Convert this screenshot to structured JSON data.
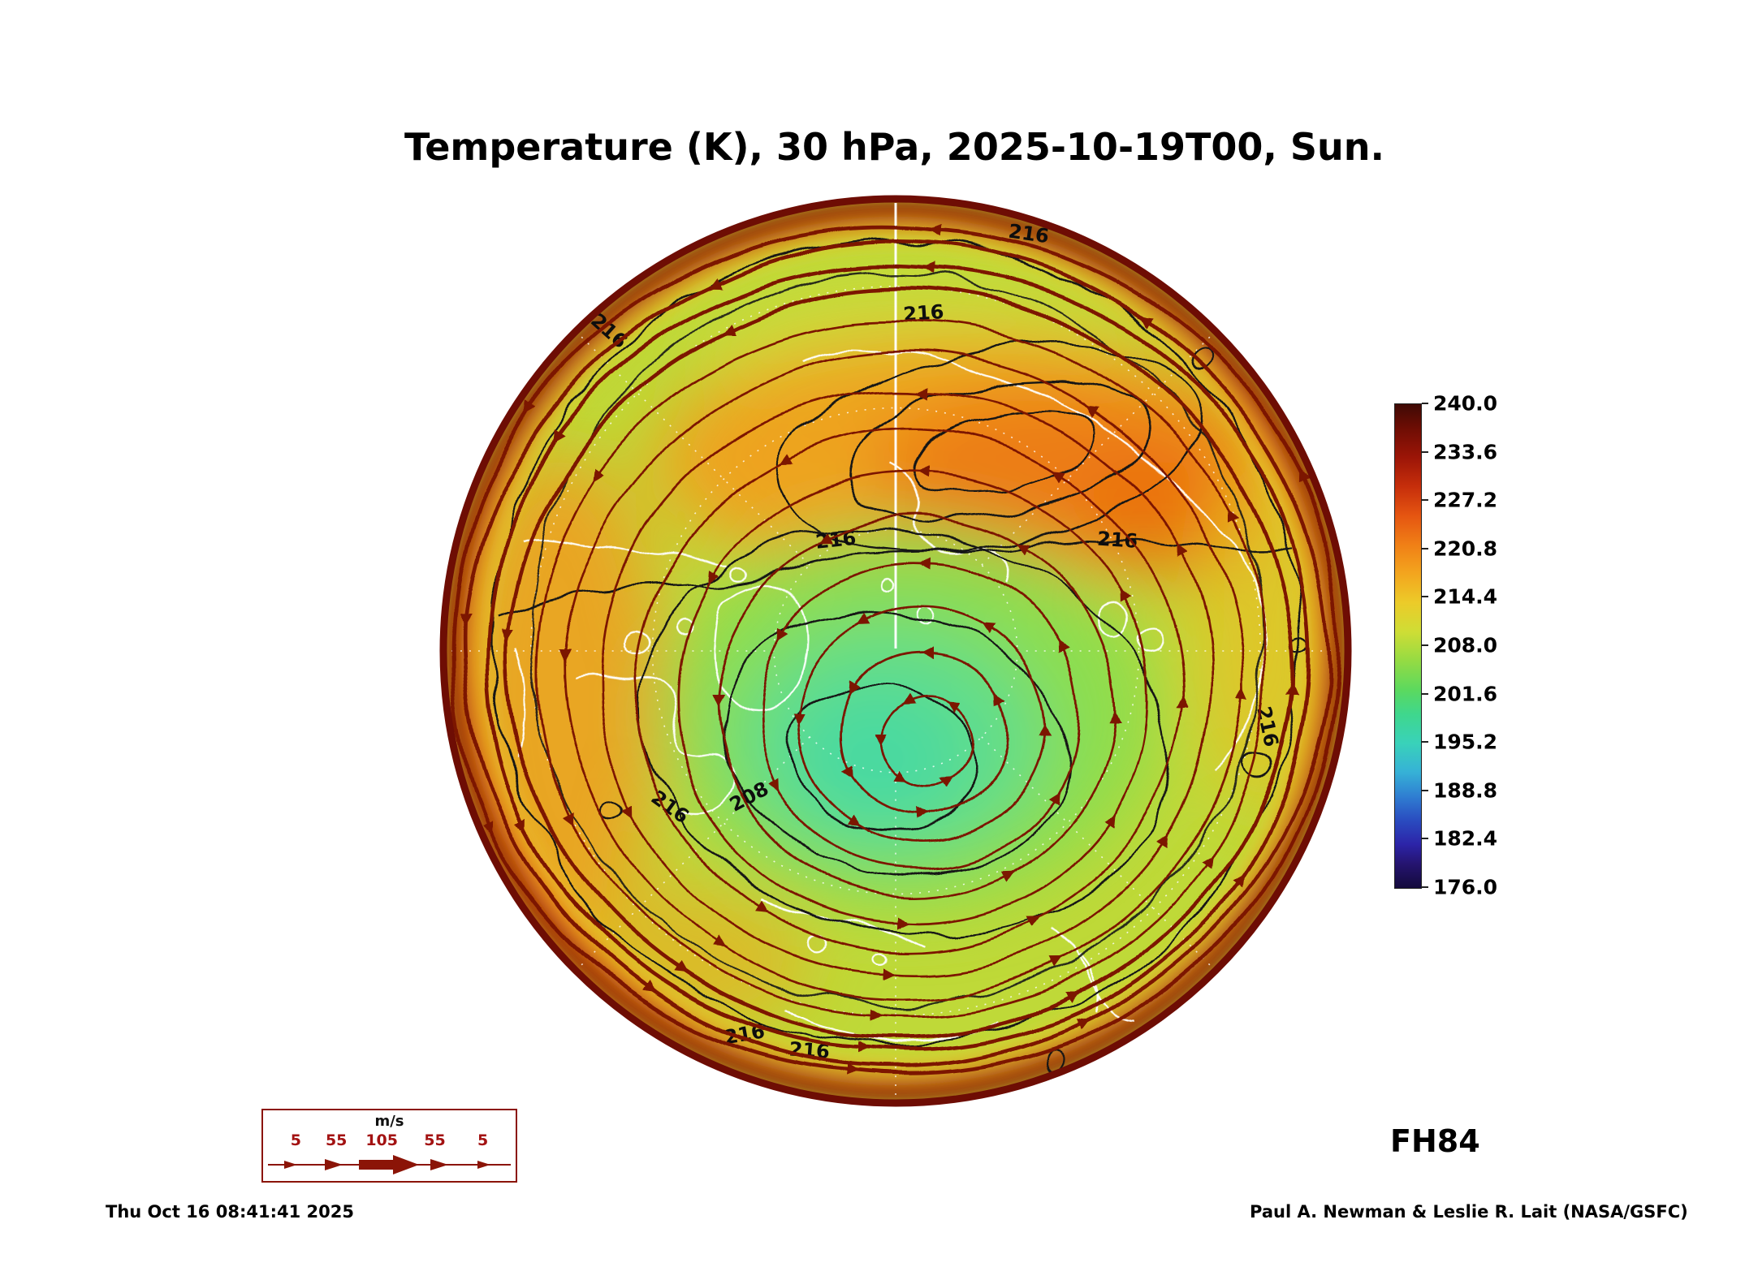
{
  "title": "Temperature (K), 30 hPa, 2025-10-19T00, Sun.",
  "footer": {
    "timestamp": "Thu Oct 16 08:41:41 2025",
    "credit": "Paul A. Newman & Leslie R. Lait (NASA/GSFC)",
    "forecast_label": "FH84"
  },
  "colorbar": {
    "ticks": [
      "240.0",
      "233.6",
      "227.2",
      "220.8",
      "214.4",
      "208.0",
      "201.6",
      "195.2",
      "188.8",
      "182.4",
      "176.0"
    ]
  },
  "wind_legend": {
    "unit": "m/s",
    "values": [
      "5",
      "55",
      "105",
      "55",
      "5"
    ]
  },
  "map": {
    "contour_labels": [
      "216",
      "216",
      "216",
      "216",
      "216",
      "216",
      "216",
      "208",
      "216",
      "216"
    ]
  },
  "chart_data": {
    "type": "heatmap",
    "title": "Temperature (K), 30 hPa, 2025-10-19T00, Sun.",
    "variable": "Temperature",
    "units": "K",
    "level": "30 hPa",
    "valid_time": "2025-10-19T00",
    "valid_day": "Sun.",
    "forecast_hour": "FH84",
    "projection": "north polar stereographic",
    "colorbar_range": [
      176.0,
      240.0
    ],
    "colorbar_ticks": [
      240.0,
      233.6,
      227.2,
      220.8,
      214.4,
      208.0,
      201.6,
      195.2,
      188.8,
      182.4,
      176.0
    ],
    "contour_line_labels": [
      216,
      208
    ],
    "wind_vector_scale_ms": [
      5,
      55,
      105,
      55,
      5
    ],
    "overlays": [
      "temperature fill",
      "temperature contours",
      "wind streamlines with arrows",
      "coastlines",
      "lat-lon graticule"
    ],
    "generated_timestamp": "Thu Oct 16 08:41:41 2025",
    "credit": "Paul A. Newman & Leslie R. Lait (NASA/GSFC)"
  }
}
